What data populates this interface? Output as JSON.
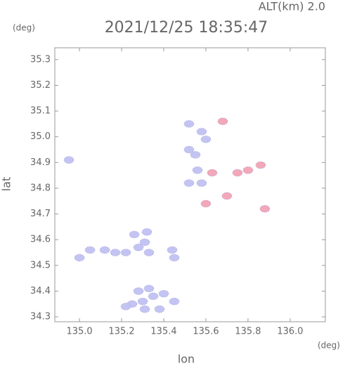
{
  "chart_data": {
    "type": "scatter",
    "title": "2021/12/25 18:35:47",
    "subtitle": "ALT(km)  2.0",
    "x_label": "lon",
    "y_label": "lat",
    "x_unit": "(deg)",
    "y_unit": "(deg)",
    "xlim": [
      134.883,
      136.167
    ],
    "ylim": [
      34.281,
      35.346
    ],
    "xticks": [
      {
        "value": 135,
        "label": "135.0"
      },
      {
        "value": 135.2,
        "label": "135.2"
      },
      {
        "value": 135.4,
        "label": "135.4"
      },
      {
        "value": 135.6,
        "label": "135.6"
      },
      {
        "value": 135.8,
        "label": "135.8"
      },
      {
        "value": 136,
        "label": "136.0"
      }
    ],
    "yticks": [
      34.3,
      34.4,
      34.5,
      34.6,
      34.7,
      34.8,
      34.9,
      {
        "value": 35,
        "label": "35.0"
      },
      35.1,
      35.2,
      35.3
    ],
    "grid": false,
    "series": [
      {
        "color": "#c4c4f2",
        "x": [
          134.95,
          135.0,
          135.05,
          135.12,
          135.17,
          135.22,
          135.26,
          135.28,
          135.31,
          135.32,
          135.33,
          135.45,
          135.44,
          135.52,
          135.52,
          135.55,
          135.6,
          135.58,
          135.56,
          135.52,
          135.58,
          135.3,
          135.25,
          135.35,
          135.38,
          135.28,
          135.45,
          135.22,
          135.33,
          135.31,
          135.4
        ],
        "values": [
          34.91,
          34.53,
          34.56,
          34.56,
          34.55,
          34.55,
          34.62,
          34.57,
          34.59,
          34.63,
          34.55,
          34.53,
          34.56,
          35.05,
          34.95,
          34.93,
          34.99,
          35.02,
          34.87,
          34.82,
          34.82,
          34.36,
          34.35,
          34.38,
          34.33,
          34.4,
          34.36,
          34.34,
          34.41,
          34.33,
          34.39
        ]
      },
      {
        "color": "#f2a8b8",
        "x": [
          135.63,
          135.7,
          135.75,
          135.8,
          135.86,
          135.88,
          135.6,
          135.68
        ],
        "values": [
          34.86,
          34.77,
          34.86,
          34.87,
          34.89,
          34.72,
          34.74,
          35.06
        ]
      }
    ]
  }
}
